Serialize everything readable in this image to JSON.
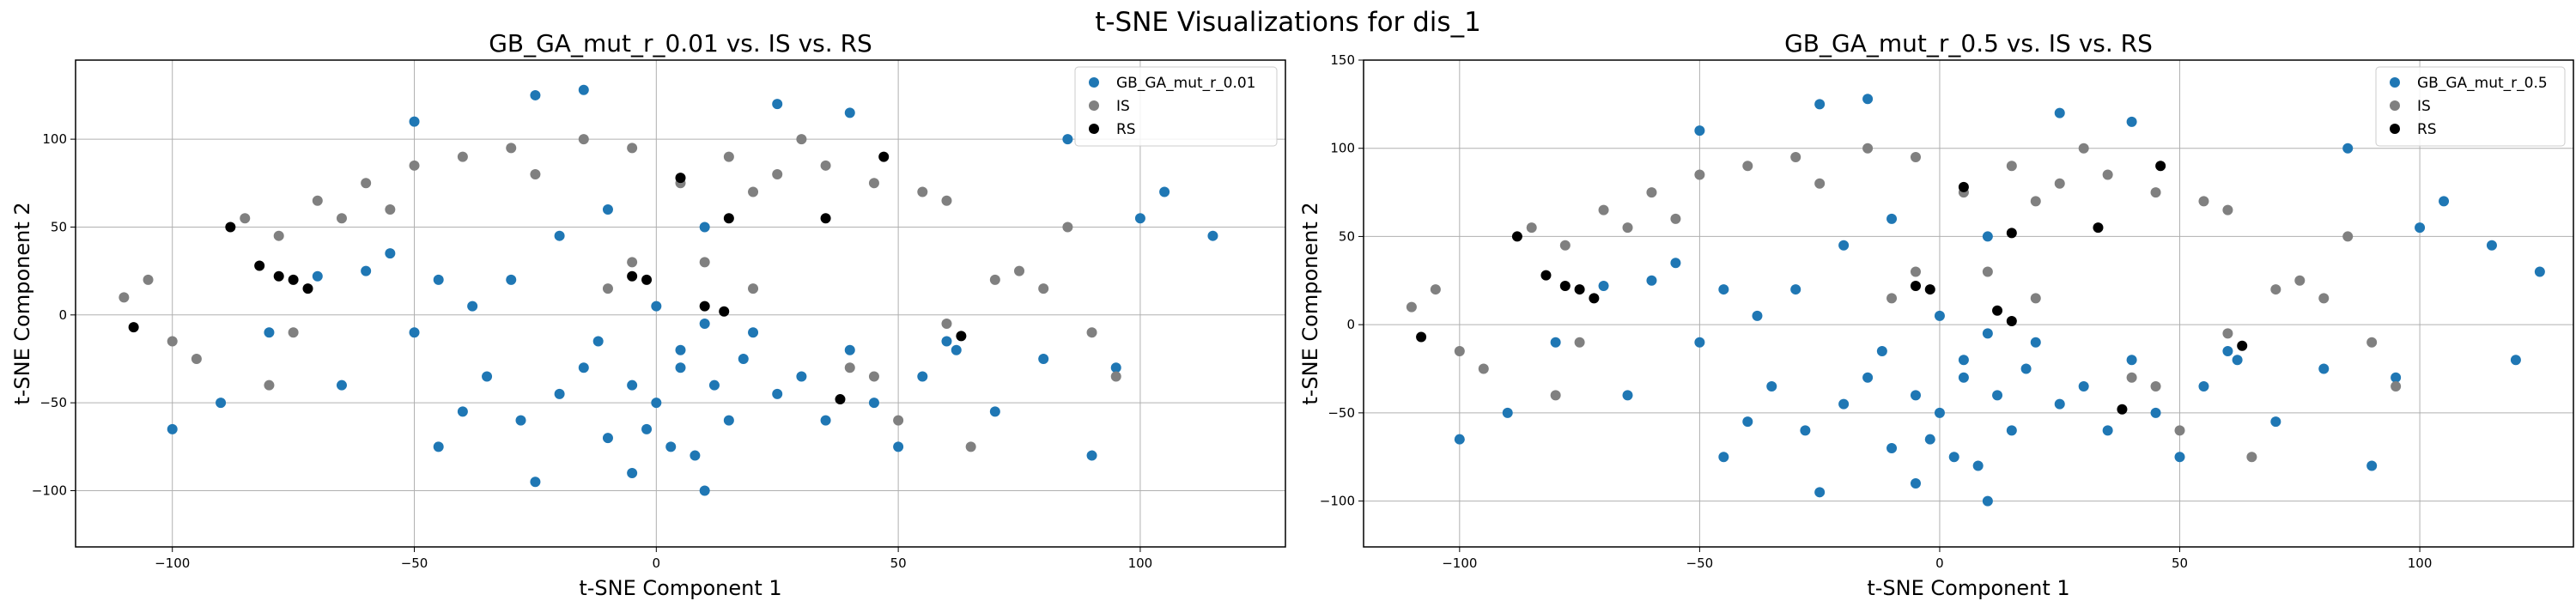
{
  "figure": {
    "title": "t-SNE Visualizations for dis_1"
  },
  "chart_data": [
    {
      "type": "scatter",
      "title": "GB_GA_mut_r_0.01 vs. IS vs. RS",
      "xlabel": "t-SNE Component 1",
      "ylabel": "t-SNE Component 2",
      "xlim": [
        -120,
        130
      ],
      "ylim": [
        -132,
        145
      ],
      "xticks": [
        -100,
        -50,
        0,
        50,
        100
      ],
      "yticks": [
        -100,
        -50,
        0,
        50,
        100
      ],
      "grid": true,
      "legend_position": "top-right",
      "series": [
        {
          "name": "GB_GA_mut_r_0.01",
          "color": "#1f77b4",
          "points": [
            [
              -20,
              -45
            ],
            [
              5,
              -30
            ],
            [
              15,
              -60
            ],
            [
              -10,
              -70
            ],
            [
              30,
              -35
            ],
            [
              -40,
              -55
            ],
            [
              0,
              -50
            ],
            [
              20,
              -10
            ],
            [
              -30,
              20
            ],
            [
              -60,
              25
            ],
            [
              -55,
              35
            ],
            [
              -45,
              20
            ],
            [
              -70,
              22
            ],
            [
              -20,
              45
            ],
            [
              -10,
              60
            ],
            [
              10,
              50
            ],
            [
              40,
              -20
            ],
            [
              60,
              -15
            ],
            [
              80,
              -25
            ],
            [
              95,
              -30
            ],
            [
              70,
              -55
            ],
            [
              50,
              -75
            ],
            [
              -5,
              -90
            ],
            [
              -25,
              -95
            ],
            [
              10,
              -100
            ],
            [
              -80,
              -10
            ],
            [
              -90,
              -50
            ],
            [
              -100,
              -65
            ],
            [
              90,
              -80
            ],
            [
              105,
              70
            ],
            [
              115,
              45
            ],
            [
              100,
              55
            ],
            [
              85,
              100
            ],
            [
              -25,
              125
            ],
            [
              -15,
              128
            ],
            [
              40,
              115
            ],
            [
              25,
              120
            ],
            [
              -50,
              110
            ],
            [
              0,
              5
            ],
            [
              10,
              -5
            ],
            [
              5,
              -20
            ],
            [
              -15,
              -30
            ],
            [
              -35,
              -35
            ],
            [
              25,
              -45
            ],
            [
              35,
              -60
            ],
            [
              -5,
              -40
            ],
            [
              -12,
              -15
            ],
            [
              18,
              -25
            ],
            [
              -45,
              -75
            ],
            [
              8,
              -80
            ],
            [
              -2,
              -65
            ],
            [
              -28,
              -60
            ],
            [
              12,
              -40
            ],
            [
              45,
              -50
            ],
            [
              55,
              -35
            ],
            [
              62,
              -20
            ],
            [
              -65,
              -40
            ],
            [
              -50,
              -10
            ],
            [
              -38,
              5
            ],
            [
              3,
              -75
            ]
          ]
        },
        {
          "name": "IS",
          "color": "#808080",
          "points": [
            [
              -85,
              55
            ],
            [
              -78,
              45
            ],
            [
              -70,
              65
            ],
            [
              -60,
              75
            ],
            [
              -50,
              85
            ],
            [
              -40,
              90
            ],
            [
              -30,
              95
            ],
            [
              -15,
              100
            ],
            [
              -5,
              95
            ],
            [
              15,
              90
            ],
            [
              25,
              80
            ],
            [
              35,
              85
            ],
            [
              45,
              75
            ],
            [
              55,
              70
            ],
            [
              60,
              65
            ],
            [
              70,
              20
            ],
            [
              80,
              15
            ],
            [
              90,
              -10
            ],
            [
              95,
              -35
            ],
            [
              -105,
              20
            ],
            [
              -110,
              10
            ],
            [
              -100,
              -15
            ],
            [
              -95,
              -25
            ],
            [
              -80,
              -40
            ],
            [
              -75,
              -10
            ],
            [
              10,
              30
            ],
            [
              20,
              15
            ],
            [
              40,
              -30
            ],
            [
              50,
              -60
            ],
            [
              65,
              -75
            ],
            [
              -5,
              30
            ],
            [
              -10,
              15
            ],
            [
              30,
              100
            ],
            [
              20,
              70
            ],
            [
              5,
              75
            ],
            [
              -25,
              80
            ],
            [
              75,
              25
            ],
            [
              60,
              -5
            ],
            [
              45,
              -35
            ],
            [
              85,
              50
            ],
            [
              -65,
              55
            ],
            [
              -55,
              60
            ]
          ]
        },
        {
          "name": "RS",
          "color": "#000000",
          "points": [
            [
              -108,
              -7
            ],
            [
              -78,
              22
            ],
            [
              -82,
              28
            ],
            [
              -75,
              20
            ],
            [
              -88,
              50
            ],
            [
              -72,
              15
            ],
            [
              5,
              78
            ],
            [
              15,
              55
            ],
            [
              35,
              55
            ],
            [
              47,
              90
            ],
            [
              10,
              5
            ],
            [
              14,
              2
            ],
            [
              -5,
              22
            ],
            [
              -2,
              20
            ],
            [
              38,
              -48
            ],
            [
              63,
              -12
            ]
          ]
        }
      ]
    },
    {
      "type": "scatter",
      "title": "GB_GA_mut_r_0.5 vs. IS vs. RS",
      "xlabel": "t-SNE Component 1",
      "ylabel": "t-SNE Component 2",
      "xlim": [
        -120,
        132
      ],
      "ylim": [
        -126,
        150
      ],
      "xticks": [
        -100,
        -50,
        0,
        50,
        100
      ],
      "yticks": [
        -100,
        -50,
        0,
        50,
        100,
        150
      ],
      "grid": true,
      "legend_position": "top-right",
      "series": [
        {
          "name": "GB_GA_mut_r_0.5",
          "color": "#1f77b4",
          "points": [
            [
              -20,
              -45
            ],
            [
              5,
              -30
            ],
            [
              15,
              -60
            ],
            [
              -10,
              -70
            ],
            [
              30,
              -35
            ],
            [
              -40,
              -55
            ],
            [
              0,
              -50
            ],
            [
              20,
              -10
            ],
            [
              -30,
              20
            ],
            [
              -60,
              25
            ],
            [
              -55,
              35
            ],
            [
              -45,
              20
            ],
            [
              -70,
              22
            ],
            [
              -20,
              45
            ],
            [
              -10,
              60
            ],
            [
              10,
              50
            ],
            [
              40,
              -20
            ],
            [
              60,
              -15
            ],
            [
              80,
              -25
            ],
            [
              95,
              -30
            ],
            [
              70,
              -55
            ],
            [
              50,
              -75
            ],
            [
              -5,
              -90
            ],
            [
              -25,
              -95
            ],
            [
              10,
              -100
            ],
            [
              -80,
              -10
            ],
            [
              -90,
              -50
            ],
            [
              -100,
              -65
            ],
            [
              90,
              -80
            ],
            [
              105,
              70
            ],
            [
              115,
              45
            ],
            [
              100,
              55
            ],
            [
              85,
              100
            ],
            [
              -25,
              125
            ],
            [
              -15,
              128
            ],
            [
              40,
              115
            ],
            [
              25,
              120
            ],
            [
              -50,
              110
            ],
            [
              0,
              5
            ],
            [
              10,
              -5
            ],
            [
              5,
              -20
            ],
            [
              -15,
              -30
            ],
            [
              -35,
              -35
            ],
            [
              25,
              -45
            ],
            [
              35,
              -60
            ],
            [
              -5,
              -40
            ],
            [
              -12,
              -15
            ],
            [
              18,
              -25
            ],
            [
              -45,
              -75
            ],
            [
              8,
              -80
            ],
            [
              -2,
              -65
            ],
            [
              -28,
              -60
            ],
            [
              12,
              -40
            ],
            [
              45,
              -50
            ],
            [
              55,
              -35
            ],
            [
              62,
              -20
            ],
            [
              -65,
              -40
            ],
            [
              -50,
              -10
            ],
            [
              -38,
              5
            ],
            [
              3,
              -75
            ],
            [
              125,
              30
            ],
            [
              120,
              -20
            ]
          ]
        },
        {
          "name": "IS",
          "color": "#808080",
          "points": [
            [
              -85,
              55
            ],
            [
              -78,
              45
            ],
            [
              -70,
              65
            ],
            [
              -60,
              75
            ],
            [
              -50,
              85
            ],
            [
              -40,
              90
            ],
            [
              -30,
              95
            ],
            [
              -15,
              100
            ],
            [
              -5,
              95
            ],
            [
              15,
              90
            ],
            [
              25,
              80
            ],
            [
              35,
              85
            ],
            [
              45,
              75
            ],
            [
              55,
              70
            ],
            [
              60,
              65
            ],
            [
              70,
              20
            ],
            [
              80,
              15
            ],
            [
              90,
              -10
            ],
            [
              95,
              -35
            ],
            [
              -105,
              20
            ],
            [
              -110,
              10
            ],
            [
              -100,
              -15
            ],
            [
              -95,
              -25
            ],
            [
              -80,
              -40
            ],
            [
              -75,
              -10
            ],
            [
              10,
              30
            ],
            [
              20,
              15
            ],
            [
              40,
              -30
            ],
            [
              50,
              -60
            ],
            [
              65,
              -75
            ],
            [
              -5,
              30
            ],
            [
              -10,
              15
            ],
            [
              30,
              100
            ],
            [
              20,
              70
            ],
            [
              5,
              75
            ],
            [
              -25,
              80
            ],
            [
              75,
              25
            ],
            [
              60,
              -5
            ],
            [
              45,
              -35
            ],
            [
              85,
              50
            ],
            [
              -65,
              55
            ],
            [
              -55,
              60
            ]
          ]
        },
        {
          "name": "RS",
          "color": "#000000",
          "points": [
            [
              -108,
              -7
            ],
            [
              -78,
              22
            ],
            [
              -82,
              28
            ],
            [
              -75,
              20
            ],
            [
              -88,
              50
            ],
            [
              -72,
              15
            ],
            [
              5,
              78
            ],
            [
              15,
              52
            ],
            [
              33,
              55
            ],
            [
              46,
              90
            ],
            [
              12,
              8
            ],
            [
              15,
              2
            ],
            [
              -5,
              22
            ],
            [
              -2,
              20
            ],
            [
              38,
              -48
            ],
            [
              63,
              -12
            ]
          ]
        }
      ]
    }
  ]
}
